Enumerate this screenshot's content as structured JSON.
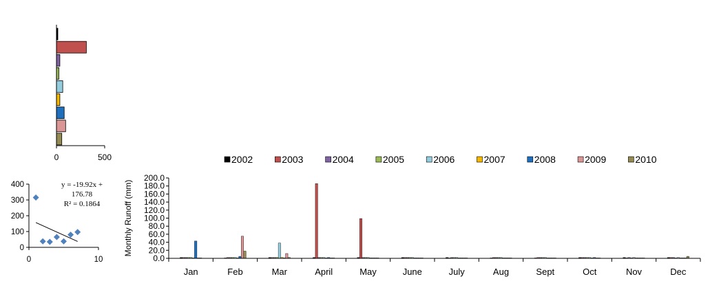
{
  "colors": {
    "2002": "#000000",
    "2003": "#c0504d",
    "2004": "#8064a2",
    "2005": "#9bbb59",
    "2006": "#93cddd",
    "2007": "#f5b800",
    "2008": "#1f6fbd",
    "2009": "#d99694",
    "2010": "#948a54",
    "axis": "#000000",
    "trendline": "#000000",
    "scatter_marker": "#4f81bd",
    "bar_outline": "#000000"
  },
  "chart_data": [
    {
      "type": "bar",
      "orientation": "horizontal",
      "categories": [
        "2002",
        "2003",
        "2004",
        "2005",
        "2006",
        "2007",
        "2008",
        "2009",
        "2010"
      ],
      "values": [
        5,
        310,
        35,
        25,
        65,
        35,
        80,
        95,
        55
      ],
      "xlim": [
        0,
        500
      ],
      "xticks": [
        "0",
        "500"
      ],
      "grid": false
    },
    {
      "type": "scatter",
      "points": [
        [
          1,
          315
        ],
        [
          2,
          38
        ],
        [
          3,
          35
        ],
        [
          4,
          65
        ],
        [
          5,
          38
        ],
        [
          6,
          80
        ],
        [
          7,
          97
        ]
      ],
      "xlim": [
        0,
        10
      ],
      "ylim": [
        0,
        400
      ],
      "xticks": [
        "0",
        "10"
      ],
      "yticks": [
        "0",
        "100",
        "200",
        "300",
        "400"
      ],
      "trendline": {
        "slope": -19.92,
        "intercept": 176.78,
        "x_range": [
          1,
          7
        ]
      },
      "annotation": {
        "line1": "y = -19.92x +",
        "line2": "176.78",
        "line3": "R² = 0.1864"
      },
      "grid": false
    },
    {
      "type": "bar",
      "ylabel": "Monthly  Runoff (mm)",
      "ylim": [
        0,
        200
      ],
      "yticks": [
        "0.0",
        "20.0",
        "40.0",
        "60.0",
        "80.0",
        "100.0",
        "120.0",
        "140.0",
        "160.0",
        "180.0",
        "200.0"
      ],
      "categories": [
        "Jan",
        "Feb",
        "Mar",
        "April",
        "May",
        "June",
        "July",
        "Aug",
        "Sept",
        "Oct",
        "Nov",
        "Dec"
      ],
      "legend_position": "top",
      "grid": false,
      "series": [
        {
          "name": "2002",
          "values": [
            2,
            1,
            2,
            2,
            2,
            2,
            2,
            1,
            1,
            2,
            2,
            2
          ]
        },
        {
          "name": "2003",
          "values": [
            2,
            2,
            2,
            186,
            99,
            2,
            1,
            2,
            2,
            2,
            1,
            2
          ]
        },
        {
          "name": "2004",
          "values": [
            2,
            2,
            2,
            2,
            2,
            2,
            2,
            2,
            2,
            2,
            2,
            2
          ]
        },
        {
          "name": "2005",
          "values": [
            2,
            2,
            2,
            2,
            2,
            2,
            2,
            2,
            2,
            2,
            1,
            1
          ]
        },
        {
          "name": "2006",
          "values": [
            2,
            2,
            38,
            2,
            2,
            2,
            2,
            2,
            2,
            2,
            2,
            2
          ]
        },
        {
          "name": "2007",
          "values": [
            1,
            1,
            2,
            1,
            1,
            1,
            1,
            1,
            1,
            1,
            1,
            1
          ]
        },
        {
          "name": "2008",
          "values": [
            43,
            5,
            1,
            2,
            1,
            1,
            1,
            1,
            1,
            2,
            1,
            1
          ]
        },
        {
          "name": "2009",
          "values": [
            1,
            55,
            12,
            1,
            1,
            1,
            1,
            1,
            1,
            1,
            1,
            1
          ]
        },
        {
          "name": "2010",
          "values": [
            1,
            18,
            2,
            1,
            1,
            1,
            1,
            1,
            1,
            1,
            1,
            5
          ]
        }
      ]
    }
  ]
}
